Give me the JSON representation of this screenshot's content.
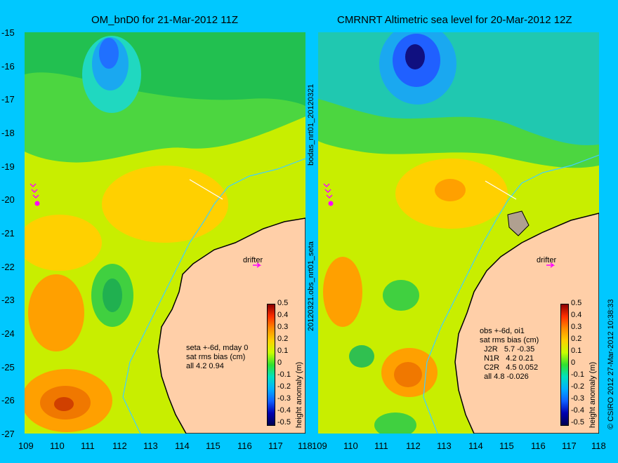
{
  "titles": {
    "left": "OM_bnD0 for 21-Mar-2012 11Z",
    "right": "CMRNRT Altimetric sea level  for 20-Mar-2012 12Z"
  },
  "axes": {
    "lat_ticks": [
      "-15",
      "-16",
      "-17",
      "-18",
      "-19",
      "-20",
      "-21",
      "-22",
      "-23",
      "-24",
      "-25",
      "-26",
      "-27"
    ],
    "lon_ticks": [
      "109",
      "110",
      "111",
      "112",
      "113",
      "114",
      "115",
      "116",
      "117",
      "118"
    ]
  },
  "side_labels": {
    "middle_upper": "bodas_nrt01_20120321",
    "middle_lower": "20120321.obs_nrt01_seta",
    "right_edge": "© CSIRO 2012  27-Mar-2012 10:38:33"
  },
  "colorbar": {
    "title": "height anomaly (m)",
    "ticks": [
      "0.5",
      "0.4",
      "0.3",
      "0.2",
      "0.1",
      "0",
      "-0.1",
      "-0.2",
      "-0.3",
      "-0.4",
      "-0.5"
    ],
    "colors": [
      "#8b0000",
      "#ff3000",
      "#ff8c00",
      "#ffd000",
      "#c8ff00",
      "#30e030",
      "#00e0c0",
      "#00b0ff",
      "#1060ff",
      "#0000b0",
      "#000050"
    ]
  },
  "annotations": {
    "left": "seta +-6d, mday 0\nsat rms bias (cm)\nall 4.2 0.94",
    "right": "obs +-6d, oi1\nsat rms bias (cm)\n  J2R   5.7 -0.35\n  N1R   4.2 0.21\n  C2R   4.5 0.052\n  all 4.8 -0.026",
    "drifter": "drifter"
  },
  "map_colors": {
    "land": "#ffcfa8",
    "coast_line": "#000000",
    "depth_line": "#40d0ff",
    "drifter_marker": "#ff00ff"
  }
}
